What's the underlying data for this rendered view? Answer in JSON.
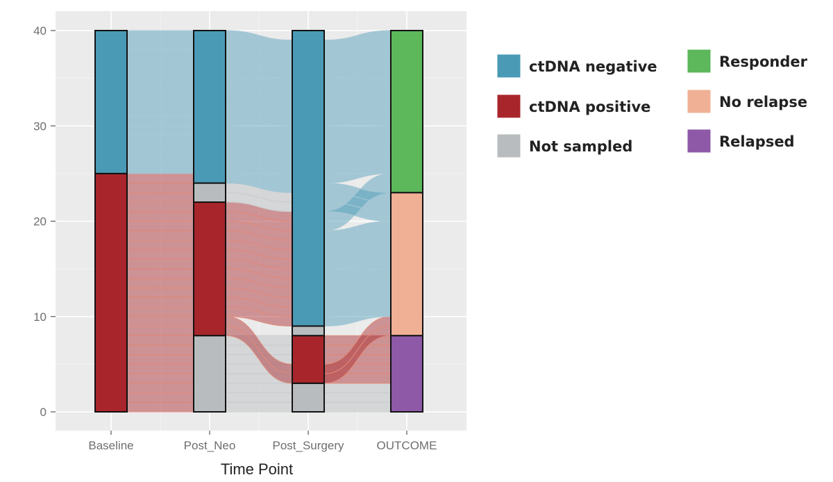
{
  "chart_data": {
    "type": "alluvial",
    "xlabel": "Time Point",
    "ylabel": "",
    "ylim": [
      0,
      40
    ],
    "y_ticks": [
      0,
      10,
      20,
      30,
      40
    ],
    "grid": true,
    "legend_position": "right",
    "axes": [
      "Baseline",
      "Post_Neo",
      "Post_Surgery",
      "OUTCOME"
    ],
    "categories": {
      "ctDNA negative": "#4a9ab6",
      "ctDNA positive": "#a8262b",
      "Not sampled": "#b8bcbf",
      "Responder": "#5cb85a",
      "No relapse": "#f0b095",
      "Relapsed": "#8e5aa8"
    },
    "legend": [
      {
        "label": "ctDNA negative",
        "color": "#4a9ab6"
      },
      {
        "label": "ctDNA positive",
        "color": "#a8262b"
      },
      {
        "label": "Not sampled",
        "color": "#b8bcbf"
      },
      {
        "label": "Responder",
        "color": "#5cb85a"
      },
      {
        "label": "No relapse",
        "color": "#f0b095"
      },
      {
        "label": "Relapsed",
        "color": "#8e5aa8"
      }
    ],
    "stacks": [
      {
        "axis": "Baseline",
        "segments": [
          {
            "category": "ctDNA positive",
            "count": 25
          },
          {
            "category": "ctDNA negative",
            "count": 15
          }
        ]
      },
      {
        "axis": "Post_Neo",
        "segments": [
          {
            "category": "Not sampled",
            "count": 8
          },
          {
            "category": "ctDNA positive",
            "count": 14
          },
          {
            "category": "Not sampled",
            "count": 2
          },
          {
            "category": "ctDNA negative",
            "count": 16
          }
        ]
      },
      {
        "axis": "Post_Surgery",
        "segments": [
          {
            "category": "Not sampled",
            "count": 3
          },
          {
            "category": "ctDNA positive",
            "count": 5
          },
          {
            "category": "Not sampled",
            "count": 1
          },
          {
            "category": "ctDNA negative",
            "count": 31
          }
        ]
      },
      {
        "axis": "OUTCOME",
        "segments": [
          {
            "category": "Relapsed",
            "count": 8
          },
          {
            "category": "No relapse",
            "count": 15
          },
          {
            "category": "Responder",
            "count": 17
          }
        ]
      }
    ]
  }
}
